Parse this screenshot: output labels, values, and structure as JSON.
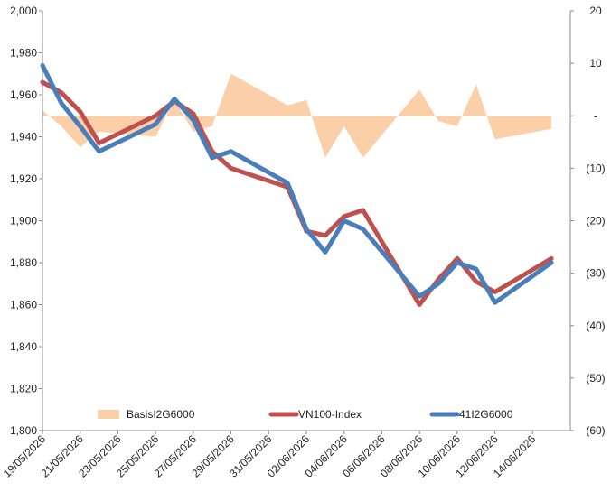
{
  "chart_data": {
    "type": "line",
    "x": [
      "19/05/2026",
      "20/05/2026",
      "21/05/2026",
      "22/05/2026",
      "25/05/2026",
      "26/05/2026",
      "27/05/2026",
      "28/05/2026",
      "29/05/2026",
      "01/06/2026",
      "02/06/2026",
      "03/06/2026",
      "04/06/2026",
      "05/06/2026",
      "08/06/2026",
      "09/06/2026",
      "10/06/2026",
      "11/06/2026",
      "12/06/2026",
      "15/06/2026"
    ],
    "x_tick_labels": [
      "19/05/2026",
      "21/05/2026",
      "23/05/2026",
      "25/05/2026",
      "27/05/2026",
      "29/05/2026",
      "31/05/2026",
      "02/06/2026",
      "04/06/2026",
      "06/06/2026",
      "08/06/2026",
      "10/06/2026",
      "12/06/2026",
      "14/06/2026"
    ],
    "left_axis": {
      "ylim": [
        1800,
        2000
      ],
      "ticks": [
        "1,800",
        "1,820",
        "1,840",
        "1,860",
        "1,880",
        "1,900",
        "1,920",
        "1,940",
        "1,960",
        "1,980",
        "2,000"
      ]
    },
    "right_axis": {
      "ylim": [
        -60,
        20
      ],
      "ticks": [
        "20",
        "10",
        "-",
        "(10)",
        "(20)",
        "(30)",
        "(40)",
        "(50)",
        "(60)"
      ]
    },
    "series": [
      {
        "name": "BasisI2G6000",
        "type": "area",
        "axis": "right",
        "color": "#fbd0a8",
        "points": [
          [
            "19/05/2026",
            1
          ],
          [
            "20/05/2026",
            -2
          ],
          [
            "21/05/2026",
            -6
          ],
          [
            "22/05/2026",
            -3
          ],
          [
            "25/05/2026",
            -4
          ],
          [
            "26/05/2026",
            3
          ],
          [
            "27/05/2026",
            -3
          ],
          [
            "28/05/2026",
            -2
          ],
          [
            "29/05/2026",
            8
          ],
          [
            "01/06/2026",
            2
          ],
          [
            "02/06/2026",
            3
          ],
          [
            "03/06/2026",
            -8
          ],
          [
            "04/06/2026",
            -2
          ],
          [
            "05/06/2026",
            -8
          ],
          [
            "08/06/2026",
            5
          ],
          [
            "09/06/2026",
            -1
          ],
          [
            "10/06/2026",
            -2
          ],
          [
            "11/06/2026",
            6
          ],
          [
            "12/06/2026",
            -4.5
          ],
          [
            "15/06/2026",
            -2.5
          ]
        ]
      },
      {
        "name": "VN100-Index",
        "type": "line",
        "axis": "left",
        "color": "#c0504d",
        "points": [
          [
            "19/05/2026",
            1966
          ],
          [
            "20/05/2026",
            1961
          ],
          [
            "21/05/2026",
            1952
          ],
          [
            "22/05/2026",
            1937
          ],
          [
            "25/05/2026",
            1950
          ],
          [
            "26/05/2026",
            1957
          ],
          [
            "27/05/2026",
            1951
          ],
          [
            "28/05/2026",
            1933
          ],
          [
            "29/05/2026",
            1925
          ],
          [
            "01/06/2026",
            1916
          ],
          [
            "02/06/2026",
            1895
          ],
          [
            "03/06/2026",
            1893
          ],
          [
            "04/06/2026",
            1902
          ],
          [
            "05/06/2026",
            1905
          ],
          [
            "08/06/2026",
            1860
          ],
          [
            "09/06/2026",
            1872
          ],
          [
            "10/06/2026",
            1882
          ],
          [
            "11/06/2026",
            1871
          ],
          [
            "12/06/2026",
            1866
          ],
          [
            "15/06/2026",
            1882
          ]
        ]
      },
      {
        "name": "41I2G6000",
        "type": "line",
        "axis": "left",
        "color": "#4a7ebb",
        "points": [
          [
            "19/05/2026",
            1974
          ],
          [
            "20/05/2026",
            1956
          ],
          [
            "21/05/2026",
            1945
          ],
          [
            "22/05/2026",
            1933
          ],
          [
            "25/05/2026",
            1946
          ],
          [
            "26/05/2026",
            1958
          ],
          [
            "27/05/2026",
            1948
          ],
          [
            "28/05/2026",
            1930
          ],
          [
            "29/05/2026",
            1933
          ],
          [
            "01/06/2026",
            1918
          ],
          [
            "02/06/2026",
            1896
          ],
          [
            "03/06/2026",
            1885
          ],
          [
            "04/06/2026",
            1900
          ],
          [
            "05/06/2026",
            1896
          ],
          [
            "08/06/2026",
            1864
          ],
          [
            "09/06/2026",
            1870
          ],
          [
            "10/06/2026",
            1880
          ],
          [
            "11/06/2026",
            1877
          ],
          [
            "12/06/2026",
            1861
          ],
          [
            "15/06/2026",
            1880
          ]
        ]
      }
    ],
    "legend": {
      "placement": "bottom",
      "items": [
        "BasisI2G6000",
        "VN100-Index",
        "41I2G6000"
      ]
    },
    "grid": false
  }
}
